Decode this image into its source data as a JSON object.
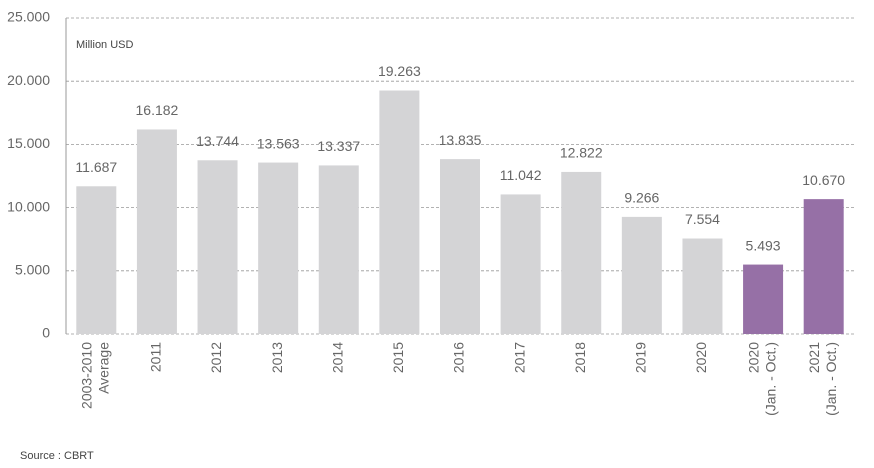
{
  "chart_data": {
    "type": "bar",
    "unit_label": "Million USD",
    "source": "Source : CBRT",
    "categories": [
      [
        "2003-2010",
        "Average"
      ],
      [
        "2011"
      ],
      [
        "2012"
      ],
      [
        "2013"
      ],
      [
        "2014"
      ],
      [
        "2015"
      ],
      [
        "2016"
      ],
      [
        "2017"
      ],
      [
        "2018"
      ],
      [
        "2019"
      ],
      [
        "2020"
      ],
      [
        "2020",
        "(Jan. - Oct.)"
      ],
      [
        "2021",
        "(Jan. - Oct.)"
      ]
    ],
    "values": [
      11687,
      16182,
      13744,
      13563,
      13337,
      19263,
      13835,
      11042,
      12822,
      9266,
      7554,
      5493,
      10670
    ],
    "value_labels": [
      "11.687",
      "16.182",
      "13.744",
      "13.563",
      "13.337",
      "19.263",
      "13.835",
      "11.042",
      "12.822",
      "9.266",
      "7.554",
      "5.493",
      "10.670"
    ],
    "colors": [
      "#d4d4d6",
      "#d4d4d6",
      "#d4d4d6",
      "#d4d4d6",
      "#d4d4d6",
      "#d4d4d6",
      "#d4d4d6",
      "#d4d4d6",
      "#d4d4d6",
      "#d4d4d6",
      "#d4d4d6",
      "#9670a6",
      "#9670a6"
    ],
    "ylim": [
      0,
      25000
    ],
    "yticks": [
      0,
      {
        "value": 5000,
        "label": "5.000"
      },
      {
        "value": 10000,
        "label": "10.000"
      },
      {
        "value": 15000,
        "label": "15.000"
      },
      {
        "value": 20000,
        "label": "20.000"
      },
      {
        "value": 25000,
        "label": "25.000"
      }
    ],
    "grid": true
  }
}
